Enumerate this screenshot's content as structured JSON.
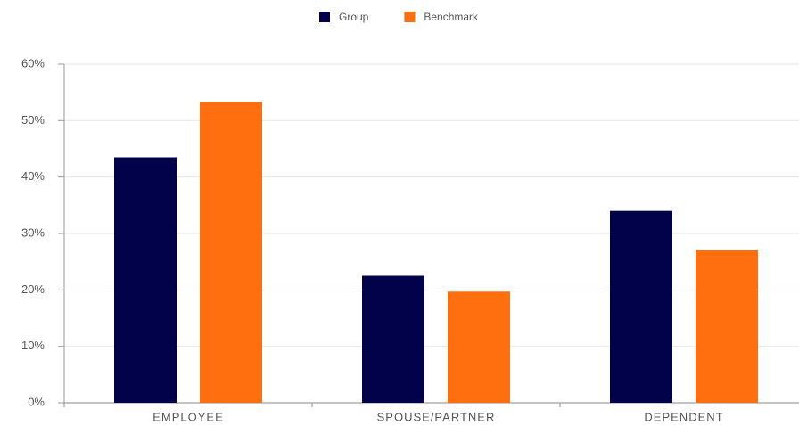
{
  "chart_data": {
    "type": "bar",
    "categories": [
      "EMPLOYEE",
      "SPOUSE/PARTNER",
      "DEPENDENT"
    ],
    "series": [
      {
        "name": "Group",
        "color": "#02024a",
        "values": [
          43.5,
          22.5,
          34.0
        ]
      },
      {
        "name": "Benchmark",
        "color": "#ff6f10",
        "values": [
          53.3,
          19.7,
          27.0
        ]
      }
    ],
    "ylim": [
      0,
      60
    ],
    "yticks": [
      {
        "value": 0,
        "label": "0%"
      },
      {
        "value": 10,
        "label": "10%"
      },
      {
        "value": 20,
        "label": "20%"
      },
      {
        "value": 30,
        "label": "30%"
      },
      {
        "value": 40,
        "label": "40%"
      },
      {
        "value": 50,
        "label": "50%"
      },
      {
        "value": 60,
        "label": "60%"
      }
    ],
    "grid": true,
    "legend": "top"
  }
}
